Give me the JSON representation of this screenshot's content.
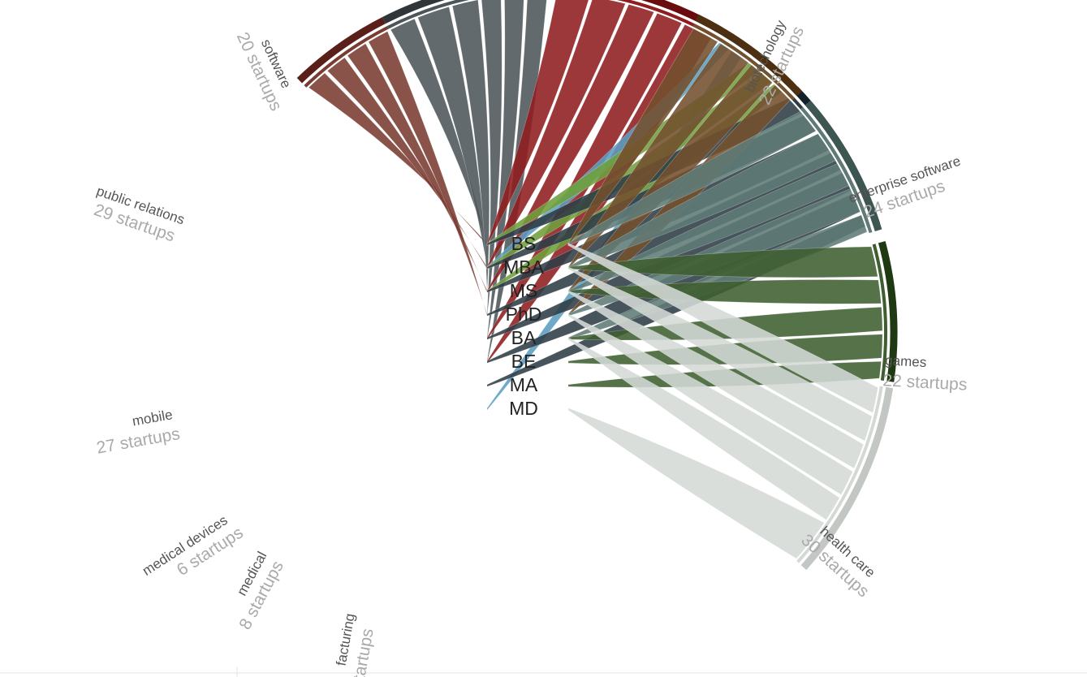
{
  "degrees": [
    "BS",
    "MBA",
    "MS",
    "PhD",
    "BA",
    "BE",
    "MA",
    "MD"
  ],
  "categories": [
    {
      "name": "software",
      "count_label": "20 startups",
      "side": "left",
      "color": "#7a3b31",
      "dark": "#5a1f19"
    },
    {
      "name": "public relations",
      "count_label": "29 startups",
      "side": "left",
      "color": "#4c5559",
      "dark": "#2f3538"
    },
    {
      "name": "mobile",
      "count_label": "27 startups",
      "side": "left",
      "color": "#8f1c1f",
      "dark": "#6a0c0d"
    },
    {
      "name": "medical devices",
      "count_label": "6 startups",
      "side": "left",
      "color": "#5a9dc1",
      "dark": "#2f6f96"
    },
    {
      "name": "medical",
      "count_label": "8 startups",
      "side": "left",
      "color": "#6e9f3b",
      "dark": "#4a7521"
    },
    {
      "name": "facturing",
      "count_label": "tartups",
      "side": "left",
      "color": "#2f3c45",
      "dark": "#152128"
    },
    {
      "name": "biotechology",
      "count_label": "22 startups",
      "side": "right",
      "color": "#73502e",
      "dark": "#4d2f12"
    },
    {
      "name": "enterprise software",
      "count_label": "24 startups",
      "side": "right",
      "color": "#5e7b76",
      "dark": "#3e5651"
    },
    {
      "name": "games",
      "count_label": "22 startups",
      "side": "right",
      "color": "#3f5e30",
      "dark": "#1f3a12"
    },
    {
      "name": "health care",
      "count_label": "30 startups",
      "side": "right",
      "color": "#d4d9d6",
      "dark": "#c2c7c4"
    }
  ]
}
